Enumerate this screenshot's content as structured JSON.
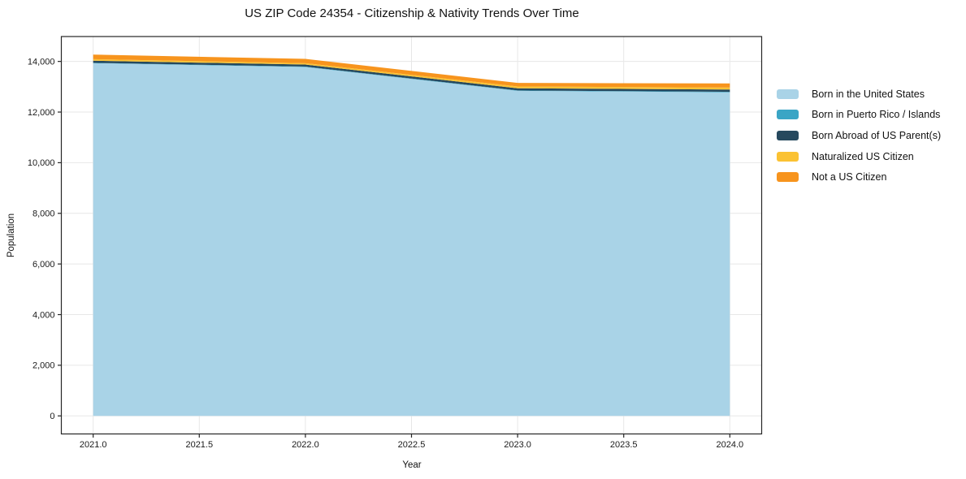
{
  "chart_data": {
    "type": "area",
    "title": "US ZIP Code 24354 - Citizenship & Nativity Trends Over Time",
    "xlabel": "Year",
    "ylabel": "Population",
    "x": [
      2021,
      2022,
      2023,
      2024
    ],
    "series": [
      {
        "name": "Born in the United States",
        "color": "#a9d3e7",
        "values": [
          13930,
          13780,
          12840,
          12780
        ]
      },
      {
        "name": "Born in Puerto Rico / Islands",
        "color": "#3aa5c5",
        "values": [
          15,
          15,
          15,
          20
        ]
      },
      {
        "name": "Born Abroad of US Parent(s)",
        "color": "#26495e",
        "values": [
          85,
          80,
          85,
          90
        ]
      },
      {
        "name": "Naturalized US Citizen",
        "color": "#fbc233",
        "values": [
          60,
          55,
          70,
          80
        ]
      },
      {
        "name": "Not a US Citizen",
        "color": "#f7941d",
        "values": [
          180,
          170,
          140,
          160
        ]
      }
    ],
    "stacked": true,
    "xticks": [
      2021.0,
      2021.5,
      2022.0,
      2022.5,
      2023.0,
      2023.5,
      2024.0
    ],
    "xtick_labels": [
      "2021.0",
      "2021.5",
      "2022.0",
      "2022.5",
      "2023.0",
      "2023.5",
      "2024.0"
    ],
    "yticks": [
      0,
      2000,
      4000,
      6000,
      8000,
      10000,
      12000,
      14000
    ],
    "ytick_labels": [
      "0",
      "2,000",
      "4,000",
      "6,000",
      "8,000",
      "10,000",
      "12,000",
      "14,000"
    ],
    "xlim": [
      2020.85,
      2024.15
    ],
    "ylim": [
      -713,
      14983
    ],
    "grid": true,
    "legend_position": "right",
    "colors": {
      "background": "#ffffff",
      "grid": "#e7e7e7",
      "spine": "#262626",
      "text": "#1a1a1a"
    }
  }
}
